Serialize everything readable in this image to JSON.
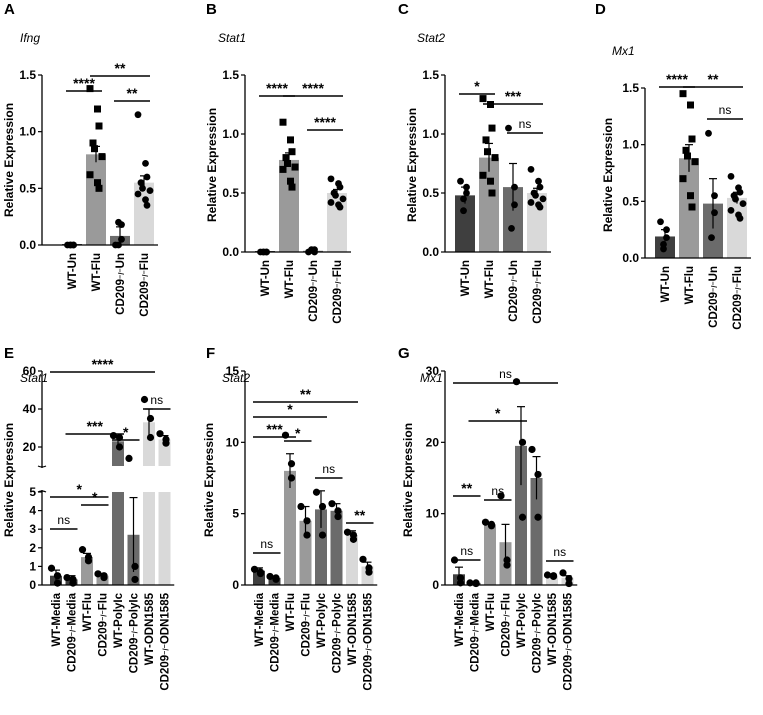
{
  "chart_data": [
    {
      "type": "bar",
      "panel": "A",
      "gene": "Ifng",
      "ylabel": "Relative Expression",
      "ylim": [
        0,
        1.5
      ],
      "yticks": [
        "0.0",
        "0.5",
        "1.0",
        "1.5"
      ],
      "categories": [
        "WT-Un",
        "WT-Flu",
        "CD209⁻/⁻Un",
        "CD209⁻/⁻Flu"
      ],
      "colors": [
        "#3f3f3f",
        "#9a9a9a",
        "#6b6b6b",
        "#d9d9d9"
      ],
      "values": [
        0.0,
        0.8,
        0.08,
        0.55
      ],
      "errors": [
        0.0,
        0.07,
        0.08,
        0.06
      ],
      "points": [
        [
          0,
          0,
          0,
          0,
          0
        ],
        [
          1.38,
          1.2,
          1.05,
          0.9,
          0.85,
          0.78,
          0.62,
          0.55,
          0.5
        ],
        [
          0.0,
          0.05,
          0.18,
          0.2,
          0.0
        ],
        [
          1.15,
          0.72,
          0.6,
          0.55,
          0.5,
          0.48,
          0.45,
          0.4,
          0.35
        ]
      ],
      "markers": [
        "circle",
        "square",
        "circle",
        "circle"
      ],
      "significance": [
        {
          "from": 0,
          "to": 1,
          "label": "****"
        },
        {
          "from": 1,
          "to": 3,
          "label": "**"
        },
        {
          "from": 2,
          "to": 3,
          "label": "**"
        }
      ]
    },
    {
      "type": "bar",
      "panel": "B",
      "gene": "Stat1",
      "ylabel": "Relative Expression",
      "ylim": [
        0,
        1.5
      ],
      "yticks": [
        "0.0",
        "0.5",
        "1.0",
        "1.5"
      ],
      "categories": [
        "WT-Un",
        "WT-Flu",
        "CD209⁻/⁻Un",
        "CD209⁻/⁻Flu"
      ],
      "colors": [
        "#3f3f3f",
        "#9a9a9a",
        "#6b6b6b",
        "#d9d9d9"
      ],
      "values": [
        0.0,
        0.78,
        0.01,
        0.5
      ],
      "errors": [
        0.0,
        0.06,
        0.01,
        0.03
      ],
      "points": [
        [
          0,
          0,
          0,
          0,
          0
        ],
        [
          1.1,
          0.95,
          0.85,
          0.8,
          0.75,
          0.72,
          0.7,
          0.6,
          0.55
        ],
        [
          0.0,
          0.02,
          0.0,
          0.02
        ],
        [
          0.62,
          0.58,
          0.55,
          0.5,
          0.48,
          0.45,
          0.42,
          0.4,
          0.38
        ]
      ],
      "markers": [
        "circle",
        "square",
        "circle",
        "circle"
      ],
      "significance": [
        {
          "from": 0,
          "to": 1,
          "label": "****"
        },
        {
          "from": 1,
          "to": 3,
          "label": "****"
        },
        {
          "from": 2,
          "to": 3,
          "label": "****"
        }
      ]
    },
    {
      "type": "bar",
      "panel": "C",
      "gene": "Stat2",
      "ylabel": "Relative Expression",
      "ylim": [
        0,
        1.5
      ],
      "yticks": [
        "0.0",
        "0.5",
        "1.0",
        "1.5"
      ],
      "categories": [
        "WT-Un",
        "WT-Flu",
        "CD209⁻/⁻Un",
        "CD209⁻/⁻Flu"
      ],
      "colors": [
        "#3f3f3f",
        "#9a9a9a",
        "#6b6b6b",
        "#d9d9d9"
      ],
      "values": [
        0.48,
        0.8,
        0.55,
        0.5
      ],
      "errors": [
        0.07,
        0.12,
        0.2,
        0.04
      ],
      "points": [
        [
          0.6,
          0.55,
          0.5,
          0.45,
          0.35
        ],
        [
          1.3,
          1.25,
          1.05,
          0.95,
          0.85,
          0.8,
          0.65,
          0.6,
          0.5
        ],
        [
          1.05,
          0.55,
          0.4,
          0.2
        ],
        [
          0.7,
          0.6,
          0.55,
          0.5,
          0.48,
          0.45,
          0.42,
          0.4,
          0.38
        ]
      ],
      "markers": [
        "circle",
        "square",
        "circle",
        "circle"
      ],
      "significance": [
        {
          "from": 0,
          "to": 1,
          "label": "*"
        },
        {
          "from": 1,
          "to": 3,
          "label": "***"
        },
        {
          "from": 2,
          "to": 3,
          "label": "ns"
        }
      ]
    },
    {
      "type": "bar",
      "panel": "D",
      "gene": "Mx1",
      "ylabel": "Relative Expression",
      "ylim": [
        0,
        1.5
      ],
      "yticks": [
        "0.0",
        "0.5",
        "1.0",
        "1.5"
      ],
      "categories": [
        "WT-Un",
        "WT-Flu",
        "CD209⁻/⁻Un",
        "CD209⁻/⁻Flu"
      ],
      "colors": [
        "#3f3f3f",
        "#9a9a9a",
        "#6b6b6b",
        "#d9d9d9"
      ],
      "values": [
        0.19,
        0.88,
        0.48,
        0.53
      ],
      "errors": [
        0.06,
        0.12,
        0.22,
        0.05
      ],
      "points": [
        [
          0.32,
          0.25,
          0.18,
          0.12,
          0.08
        ],
        [
          1.45,
          1.35,
          1.05,
          0.95,
          0.9,
          0.85,
          0.7,
          0.55,
          0.45
        ],
        [
          1.1,
          0.55,
          0.4,
          0.18
        ],
        [
          0.72,
          0.62,
          0.58,
          0.55,
          0.52,
          0.48,
          0.42,
          0.38,
          0.35
        ]
      ],
      "markers": [
        "circle",
        "square",
        "circle",
        "circle"
      ],
      "significance": [
        {
          "from": 0,
          "to": 1,
          "label": "****"
        },
        {
          "from": 1,
          "to": 3,
          "label": "**"
        },
        {
          "from": 2,
          "to": 3,
          "label": "ns"
        }
      ]
    },
    {
      "type": "bar",
      "panel": "E",
      "gene": "Stat1",
      "ylabel": "Relative Expression",
      "axis_break": true,
      "lower_range": [
        0,
        5
      ],
      "upper_range": [
        10,
        60
      ],
      "yticks": [
        "0",
        "1",
        "2",
        "3",
        "4",
        "5",
        "20",
        "40",
        "60"
      ],
      "categories": [
        "WT-Media",
        "CD209⁻/⁻Media",
        "WT-Flu",
        "CD209⁻/⁻Flu",
        "WT-PolyIc",
        "CD209⁻/⁻PolyIc",
        "WT-ODN1585",
        "CD209⁻/⁻ODN1585"
      ],
      "colors": [
        "#3f3f3f",
        "#3f3f3f",
        "#9a9a9a",
        "#9a9a9a",
        "#6b6b6b",
        "#6b6b6b",
        "#d9d9d9",
        "#d9d9d9"
      ],
      "values": [
        0.5,
        0.3,
        1.5,
        0.5,
        23,
        2.7,
        33,
        24
      ],
      "errors": [
        0.3,
        0.2,
        0.2,
        0.1,
        3,
        2.0,
        7,
        2
      ],
      "points": [
        [
          0.9,
          0.5,
          0.1
        ],
        [
          0.4,
          0.3,
          0.1
        ],
        [
          1.9,
          1.5,
          1.3
        ],
        [
          0.6,
          0.5,
          0.4
        ],
        [
          26,
          25,
          20
        ],
        [
          14,
          1.0,
          0.3
        ],
        [
          45,
          35,
          25
        ],
        [
          27,
          24,
          22
        ]
      ],
      "markers": [
        "circle",
        "circle",
        "circle",
        "circle",
        "circle",
        "circle",
        "circle",
        "circle"
      ],
      "significance": [
        {
          "from": 0,
          "to": 1,
          "label": "ns"
        },
        {
          "from": 0,
          "to": 3,
          "label": "*"
        },
        {
          "from": 2,
          "to": 3,
          "label": "*"
        },
        {
          "from": 1,
          "to": 4,
          "label": "***"
        },
        {
          "from": 4,
          "to": 5,
          "label": "*"
        },
        {
          "from": 0,
          "to": 6,
          "label": "****"
        },
        {
          "from": 6,
          "to": 7,
          "label": "ns"
        }
      ]
    },
    {
      "type": "bar",
      "panel": "F",
      "gene": "Stat2",
      "ylabel": "Relative Expression",
      "ylim": [
        0,
        15
      ],
      "yticks": [
        "0",
        "5",
        "10",
        "15"
      ],
      "categories": [
        "WT-Media",
        "CD209⁻/⁻Media",
        "WT-Flu",
        "CD209⁻/⁻Flu",
        "WT-PolyIc",
        "CD209⁻/⁻PolyIc",
        "WT-ODN1585",
        "CD209⁻/⁻ODN1585"
      ],
      "colors": [
        "#3f3f3f",
        "#3f3f3f",
        "#9a9a9a",
        "#9a9a9a",
        "#6b6b6b",
        "#6b6b6b",
        "#d9d9d9",
        "#d9d9d9"
      ],
      "values": [
        1.0,
        0.5,
        8.0,
        4.5,
        5.3,
        5.2,
        3.5,
        1.3
      ],
      "errors": [
        0.2,
        0.1,
        1.2,
        1.0,
        1.3,
        0.5,
        0.3,
        0.3
      ],
      "points": [
        [
          1.1,
          0.9,
          0.8
        ],
        [
          0.6,
          0.5,
          0.4
        ],
        [
          10.5,
          8.5,
          7.5
        ],
        [
          5.5,
          4.5,
          3.5
        ],
        [
          6.5,
          5.5,
          3.5
        ],
        [
          5.7,
          5.2,
          4.8
        ],
        [
          3.7,
          3.5,
          3.2
        ],
        [
          1.8,
          1.2,
          0.9
        ]
      ],
      "markers": [
        "circle",
        "circle",
        "circle",
        "circle",
        "circle",
        "circle",
        "circle",
        "circle"
      ],
      "significance": [
        {
          "from": 0,
          "to": 1,
          "label": "ns"
        },
        {
          "from": 0,
          "to": 2,
          "label": "***"
        },
        {
          "from": 2,
          "to": 3,
          "label": "*"
        },
        {
          "from": 0,
          "to": 4,
          "label": "*"
        },
        {
          "from": 4,
          "to": 5,
          "label": "ns"
        },
        {
          "from": 0,
          "to": 6,
          "label": "**"
        },
        {
          "from": 6,
          "to": 7,
          "label": "**"
        }
      ]
    },
    {
      "type": "bar",
      "panel": "G",
      "gene": "Mx1",
      "ylabel": "Relative Expression",
      "ylim": [
        0,
        30
      ],
      "yticks": [
        "0",
        "10",
        "20",
        "30"
      ],
      "categories": [
        "WT-Media",
        "CD209⁻/⁻Media",
        "WT-Flu",
        "CD209⁻/⁻Flu",
        "WT-PolyIc",
        "CD209⁻/⁻PolyIc",
        "WT-ODN1585",
        "CD209⁻/⁻ODN1585"
      ],
      "colors": [
        "#3f3f3f",
        "#3f3f3f",
        "#9a9a9a",
        "#9a9a9a",
        "#6b6b6b",
        "#6b6b6b",
        "#d9d9d9",
        "#d9d9d9"
      ],
      "values": [
        1.5,
        0.3,
        8.5,
        6.0,
        19.5,
        15.0,
        1.3,
        1.0
      ],
      "errors": [
        1.0,
        0.1,
        0.3,
        2.5,
        5.5,
        3.0,
        0.2,
        0.3
      ],
      "points": [
        [
          3.5,
          1.0,
          0.3
        ],
        [
          0.3,
          0.3,
          0.2
        ],
        [
          8.8,
          8.5,
          8.3
        ],
        [
          12.5,
          3.5,
          2.8
        ],
        [
          28.5,
          20,
          9.5
        ],
        [
          19,
          15.5,
          9.5
        ],
        [
          1.4,
          1.3,
          1.2
        ],
        [
          1.7,
          0.9,
          0.2
        ]
      ],
      "markers": [
        "circle",
        "circle",
        "circle",
        "circle",
        "circle",
        "circle",
        "circle",
        "circle"
      ],
      "significance": [
        {
          "from": 0,
          "to": 1,
          "label": "ns"
        },
        {
          "from": 0,
          "to": 1,
          "label": "**"
        },
        {
          "from": 2,
          "to": 3,
          "label": "ns"
        },
        {
          "from": 1,
          "to": 4,
          "label": "*"
        },
        {
          "from": 0,
          "to": 6,
          "label": "ns"
        },
        {
          "from": 6,
          "to": 7,
          "label": "ns"
        }
      ]
    }
  ]
}
